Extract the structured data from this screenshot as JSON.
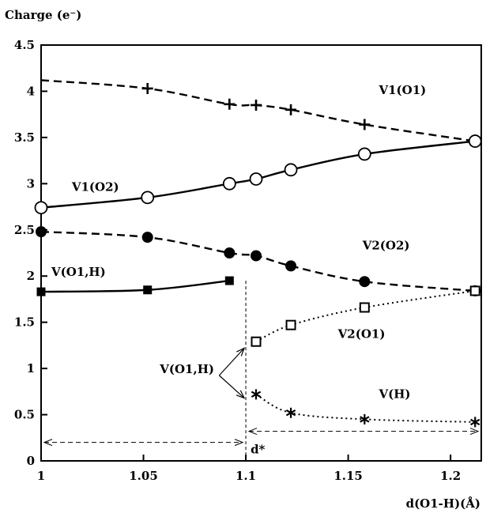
{
  "chart_data": {
    "type": "line",
    "ylabel": "Charge (e⁻)",
    "xlabel": "d(O1-H)(Å)",
    "xlim": [
      1.0,
      1.215
    ],
    "ylim": [
      0,
      4.5
    ],
    "xticks": [
      {
        "v": 1.0,
        "label": "1"
      },
      {
        "v": 1.05,
        "label": "1.05"
      },
      {
        "v": 1.1,
        "label": "1.1"
      },
      {
        "v": 1.15,
        "label": "1.15"
      },
      {
        "v": 1.2,
        "label": "1.2"
      }
    ],
    "yticks": [
      {
        "v": 0,
        "label": "0"
      },
      {
        "v": 0.5,
        "label": "0.5"
      },
      {
        "v": 1,
        "label": "1"
      },
      {
        "v": 1.5,
        "label": "1.5"
      },
      {
        "v": 2,
        "label": "2"
      },
      {
        "v": 2.5,
        "label": "2.5"
      },
      {
        "v": 3,
        "label": "3"
      },
      {
        "v": 3.5,
        "label": "3.5"
      },
      {
        "v": 4,
        "label": "4"
      },
      {
        "v": 4.5,
        "label": "4.5"
      }
    ],
    "grid": false,
    "series": [
      {
        "name": "V1(O1)",
        "marker": "plus",
        "line": "dashed",
        "x": [
          1.0,
          1.052,
          1.092,
          1.105,
          1.122,
          1.158,
          1.212
        ],
        "y": [
          4.12,
          4.03,
          3.86,
          3.85,
          3.8,
          3.64,
          3.46
        ],
        "markers": [
          1,
          2,
          3,
          4,
          5
        ]
      },
      {
        "name": "V1(O2)",
        "marker": "open-circle",
        "line": "solid",
        "x": [
          1.0,
          1.052,
          1.092,
          1.105,
          1.122,
          1.158,
          1.212
        ],
        "y": [
          2.74,
          2.85,
          3.0,
          3.05,
          3.15,
          3.32,
          3.46
        ],
        "markers": [
          0,
          1,
          2,
          3,
          4,
          5,
          6
        ]
      },
      {
        "name": "V2(O2)",
        "marker": "filled-circle",
        "line": "dashed",
        "x": [
          1.0,
          1.052,
          1.092,
          1.105,
          1.122,
          1.158,
          1.212
        ],
        "y": [
          2.48,
          2.42,
          2.25,
          2.22,
          2.11,
          1.94,
          1.84
        ],
        "markers": [
          0,
          1,
          2,
          3,
          4,
          5,
          6
        ]
      },
      {
        "name": "V(O1,H)",
        "marker": "filled-square",
        "line": "solid",
        "x": [
          1.0,
          1.052,
          1.092
        ],
        "y": [
          1.83,
          1.85,
          1.95
        ],
        "markers": [
          0,
          1,
          2
        ]
      },
      {
        "name": "V2(O1)",
        "marker": "open-square",
        "line": "dotted",
        "x": [
          1.105,
          1.122,
          1.158,
          1.212
        ],
        "y": [
          1.29,
          1.47,
          1.66,
          1.84
        ],
        "markers": [
          0,
          1,
          2,
          3
        ]
      },
      {
        "name": "V(H)",
        "marker": "asterisk",
        "line": "dotted",
        "x": [
          1.105,
          1.122,
          1.158,
          1.212
        ],
        "y": [
          0.72,
          0.52,
          0.45,
          0.42
        ],
        "markers": [
          0,
          1,
          2,
          3
        ]
      }
    ],
    "annotations": {
      "series_labels": [
        {
          "text": "V1(O1)",
          "x": 1.165,
          "y": 3.97
        },
        {
          "text": "V1(O2)",
          "x": 1.015,
          "y": 2.92
        },
        {
          "text": "V2(O2)",
          "x": 1.157,
          "y": 2.29
        },
        {
          "text": "V(O1,H)",
          "x": 1.005,
          "y": 2.0
        },
        {
          "text": "V2(O1)",
          "x": 1.145,
          "y": 1.33
        },
        {
          "text": "V(H)",
          "x": 1.165,
          "y": 0.68
        },
        {
          "text": "V(O1,H)",
          "x": 1.058,
          "y": 0.95
        }
      ],
      "d_star": {
        "label": "d*",
        "x": 1.1
      }
    }
  }
}
